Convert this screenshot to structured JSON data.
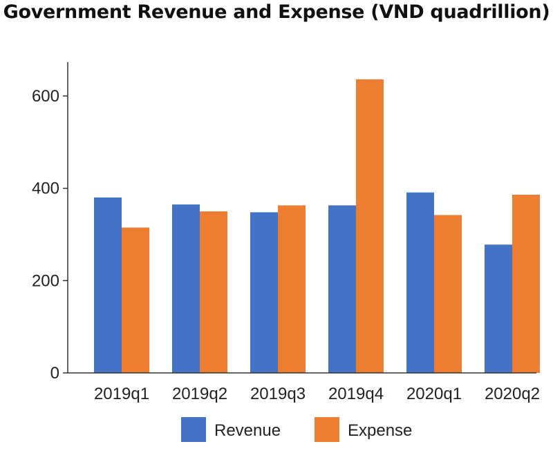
{
  "chart_data": {
    "type": "bar",
    "title": "Government Revenue and Expense (VND quadrillion)",
    "categories": [
      "2019q1",
      "2019q2",
      "2019q3",
      "2019q4",
      "2020q1",
      "2020q2"
    ],
    "series": [
      {
        "name": "Revenue",
        "color": "#4472c4",
        "values": [
          380,
          365,
          348,
          363,
          391,
          278
        ]
      },
      {
        "name": "Expense",
        "color": "#ed7d31",
        "values": [
          315,
          350,
          363,
          636,
          342,
          386
        ]
      }
    ],
    "ylim": [
      0,
      670
    ],
    "yticks": [
      0,
      200,
      400,
      600
    ],
    "grid": false,
    "legend_position": "bottom"
  }
}
